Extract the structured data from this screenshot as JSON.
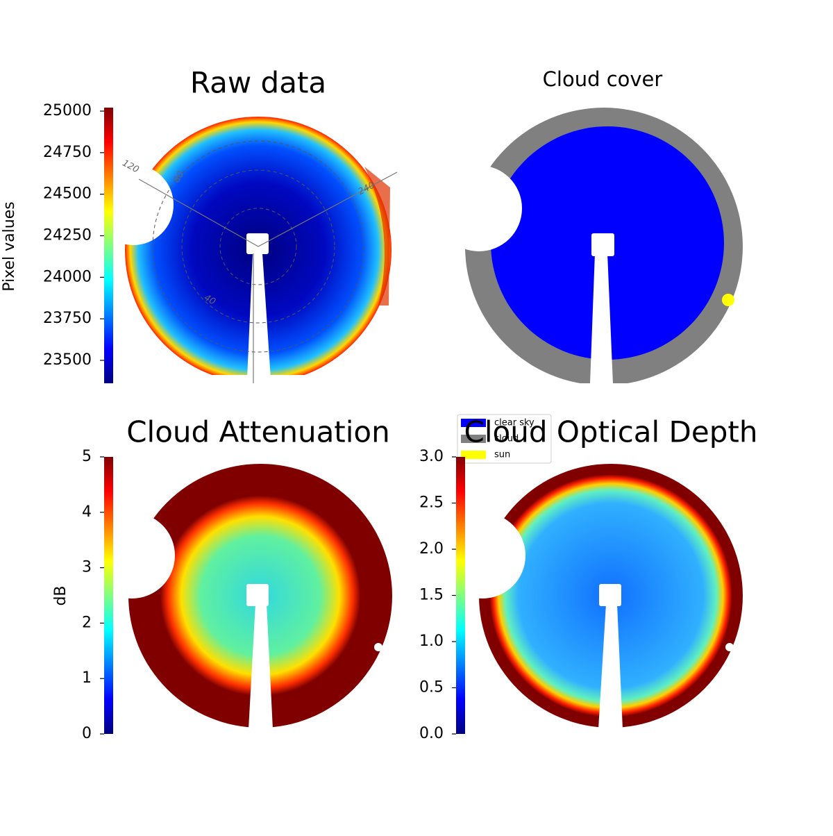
{
  "chart_data": [
    {
      "type": "image",
      "title": "Raw data",
      "colormap": "jet",
      "colorbar_label": "Pixel values",
      "ylim": [
        23362,
        25021
      ],
      "yticks": [
        23500,
        23750,
        24000,
        24250,
        24500,
        24750,
        25000
      ],
      "annotations": [
        "120",
        "80",
        "240",
        "40"
      ]
    },
    {
      "type": "image",
      "title": "Cloud cover",
      "legend": [
        {
          "name": "clear sky",
          "color": "#0000ff"
        },
        {
          "name": "cloud",
          "color": "#808080"
        },
        {
          "name": "sun",
          "color": "#ffff00"
        }
      ]
    },
    {
      "type": "image",
      "title": "Cloud Attenuation",
      "colormap": "jet",
      "colorbar_label": "dB",
      "ylim": [
        0,
        5
      ],
      "yticks": [
        0,
        1,
        2,
        3,
        4,
        5
      ]
    },
    {
      "type": "image",
      "title": "Cloud Optical Depth",
      "colormap": "jet",
      "ylim": [
        0,
        3
      ],
      "yticks": [
        {
          "value": 0,
          "label": "0.0"
        },
        0.5,
        {
          "value": 1,
          "label": "1.0"
        },
        1.5,
        {
          "value": 2,
          "label": "2.0"
        },
        2.5,
        {
          "value": 3,
          "label": "3.0"
        }
      ]
    }
  ]
}
